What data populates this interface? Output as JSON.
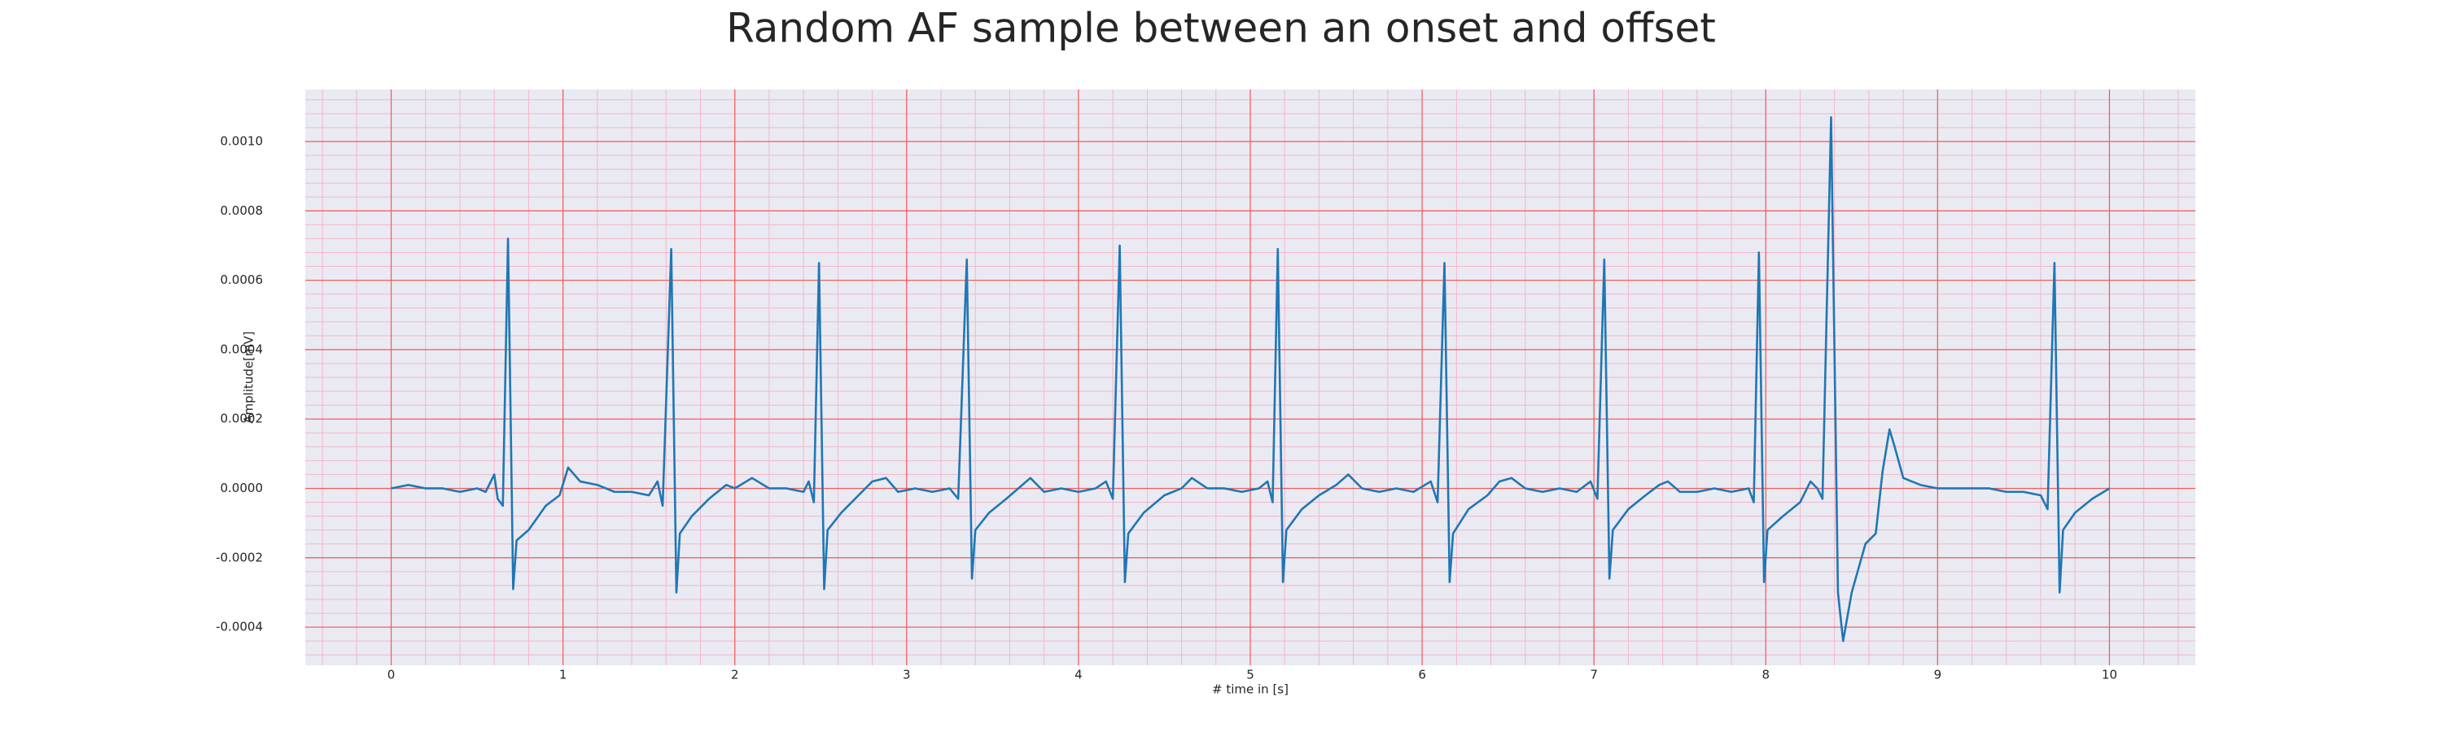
{
  "chart_data": {
    "type": "line",
    "title": "Random AF sample between an onset and offset",
    "x_label": "# time in [s]",
    "y_label": "Amplitude[mV]",
    "xlim": [
      -0.5,
      10.5
    ],
    "ylim": [
      -0.00051,
      0.00115
    ],
    "xticks": [
      0,
      1,
      2,
      3,
      4,
      5,
      6,
      7,
      8,
      9,
      10
    ],
    "yticks": [
      {
        "value": 0.001,
        "label": "0.0010"
      },
      {
        "value": 0.0008,
        "label": "0.0008"
      },
      {
        "value": 0.0006,
        "label": "0.0006"
      },
      {
        "value": 0.0004,
        "label": "0.0004"
      },
      {
        "value": 0.0002,
        "label": "0.0002"
      },
      {
        "value": 0,
        "label": "0.0000"
      },
      {
        "value": -0.0002,
        "label": "-0.0002"
      },
      {
        "value": -0.0004,
        "label": "-0.0004"
      }
    ],
    "grid": true,
    "x": [
      0,
      0.1,
      0.2,
      0.3,
      0.4,
      0.5,
      0.55,
      0.6,
      0.62,
      0.65,
      0.68,
      0.71,
      0.73,
      0.8,
      0.9,
      0.98,
      1.03,
      1.1,
      1.2,
      1.3,
      1.4,
      1.5,
      1.55,
      1.58,
      1.63,
      1.66,
      1.68,
      1.75,
      1.85,
      1.95,
      2.0,
      2.1,
      2.2,
      2.3,
      2.4,
      2.43,
      2.46,
      2.49,
      2.52,
      2.54,
      2.62,
      2.72,
      2.8,
      2.88,
      2.95,
      3.05,
      3.15,
      3.25,
      3.3,
      3.35,
      3.38,
      3.4,
      3.48,
      3.58,
      3.65,
      3.72,
      3.8,
      3.9,
      4.0,
      4.1,
      4.16,
      4.2,
      4.24,
      4.27,
      4.29,
      4.38,
      4.5,
      4.6,
      4.66,
      4.75,
      4.85,
      4.95,
      5.05,
      5.1,
      5.13,
      5.16,
      5.19,
      5.21,
      5.3,
      5.4,
      5.5,
      5.57,
      5.65,
      5.75,
      5.85,
      5.95,
      6.05,
      6.09,
      6.13,
      6.16,
      6.18,
      6.27,
      6.38,
      6.45,
      6.52,
      6.6,
      6.7,
      6.8,
      6.9,
      6.98,
      7.02,
      7.06,
      7.09,
      7.11,
      7.2,
      7.3,
      7.38,
      7.43,
      7.5,
      7.6,
      7.7,
      7.8,
      7.9,
      7.93,
      7.96,
      7.99,
      8.01,
      8.1,
      8.2,
      8.26,
      8.3,
      8.33,
      8.38,
      8.42,
      8.45,
      8.5,
      8.58,
      8.64,
      8.68,
      8.72,
      8.75,
      8.8,
      8.9,
      9.0,
      9.1,
      9.2,
      9.3,
      9.4,
      9.5,
      9.6,
      9.64,
      9.68,
      9.71,
      9.73,
      9.8,
      9.9,
      10.0
    ],
    "series": [
      {
        "color": "#1f77b4",
        "values": [
          0,
          1e-05,
          0,
          0,
          -1e-05,
          0,
          -1e-05,
          4e-05,
          -3e-05,
          -5e-05,
          0.00072,
          -0.00029,
          -0.00015,
          -0.00012,
          -5e-05,
          -2e-05,
          6e-05,
          2e-05,
          1e-05,
          -1e-05,
          -1e-05,
          -2e-05,
          2e-05,
          -5e-05,
          0.00069,
          -0.0003,
          -0.00013,
          -8e-05,
          -3e-05,
          1e-05,
          0,
          3e-05,
          0,
          0,
          -1e-05,
          2e-05,
          -4e-05,
          0.00065,
          -0.00029,
          -0.00012,
          -7e-05,
          -2e-05,
          2e-05,
          3e-05,
          -1e-05,
          0,
          -1e-05,
          0,
          -3e-05,
          0.00066,
          -0.00026,
          -0.00012,
          -7e-05,
          -3e-05,
          0,
          3e-05,
          -1e-05,
          0,
          -1e-05,
          0,
          2e-05,
          -3e-05,
          0.0007,
          -0.00027,
          -0.00013,
          -7e-05,
          -2e-05,
          0,
          3e-05,
          0,
          0,
          -1e-05,
          0,
          2e-05,
          -4e-05,
          0.00069,
          -0.00027,
          -0.00012,
          -6e-05,
          -2e-05,
          1e-05,
          4e-05,
          0,
          -1e-05,
          0,
          -1e-05,
          2e-05,
          -4e-05,
          0.00065,
          -0.00027,
          -0.00013,
          -6e-05,
          -2e-05,
          2e-05,
          3e-05,
          0,
          -1e-05,
          0,
          -1e-05,
          2e-05,
          -3e-05,
          0.00066,
          -0.00026,
          -0.00012,
          -6e-05,
          -2e-05,
          1e-05,
          2e-05,
          -1e-05,
          -1e-05,
          0,
          -1e-05,
          0,
          -4e-05,
          0.00068,
          -0.00027,
          -0.00012,
          -8e-05,
          -4e-05,
          2e-05,
          0,
          -3e-05,
          0.00107,
          -0.0003,
          -0.00044,
          -0.0003,
          -0.00016,
          -0.00013,
          5e-05,
          0.00017,
          0.00012,
          3e-05,
          1e-05,
          0,
          0,
          0,
          0,
          -1e-05,
          -1e-05,
          -2e-05,
          -6e-05,
          0.00065,
          -0.0003,
          -0.00012,
          -7e-05,
          -3e-05,
          0
        ]
      }
    ]
  }
}
